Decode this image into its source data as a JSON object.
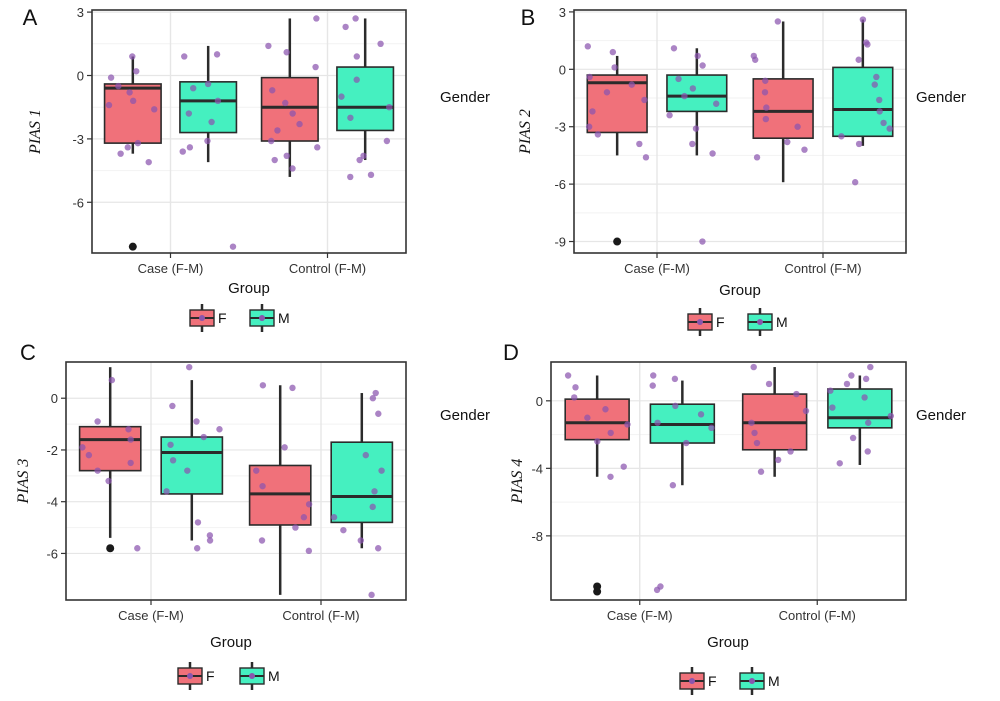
{
  "colors": {
    "F": "#f0717a",
    "M": "#45f0c0",
    "jitter": "#8a55ae",
    "outlier": "#1a1a1a",
    "panel_border": "#333333",
    "grid_major": "#e6e6e6",
    "grid_minor": "#f2f2f2"
  },
  "chart_data": [
    {
      "type": "box",
      "panel": "A",
      "ylabel": "PIAS 1",
      "xlabel": "Group",
      "categories": [
        "Case (F-M)",
        "Control (F-M)"
      ],
      "ylim": [
        -8.4,
        3.1
      ],
      "yticks": [
        -6,
        -3,
        0,
        3
      ],
      "legend": {
        "title": "Gender",
        "entries": [
          "F",
          "M"
        ]
      },
      "series": [
        {
          "name": "F",
          "boxes": [
            {
              "category": "Case (F-M)",
              "min": -3.7,
              "q1": -3.2,
              "median": -0.6,
              "q3": -0.4,
              "max": 0.9,
              "outliers": [
                -8.1
              ]
            },
            {
              "category": "Control (F-M)",
              "min": -4.8,
              "q1": -3.1,
              "median": -1.5,
              "q3": -0.1,
              "max": 2.7,
              "outliers": []
            }
          ]
        },
        {
          "name": "M",
          "boxes": [
            {
              "category": "Case (F-M)",
              "min": -4.1,
              "q1": -2.7,
              "median": -1.2,
              "q3": -0.3,
              "max": 1.4,
              "outliers": []
            },
            {
              "category": "Control (F-M)",
              "min": -4.0,
              "q1": -2.6,
              "median": -1.5,
              "q3": 0.4,
              "max": 2.7,
              "outliers": []
            }
          ]
        }
      ],
      "points": [
        {
          "category": "Case (F-M)",
          "group": "F",
          "values": [
            0.9,
            0.2,
            -0.1,
            -0.5,
            -0.8,
            -1.2,
            -1.4,
            -1.6,
            -3.2,
            -3.4,
            -3.7,
            -4.1
          ]
        },
        {
          "category": "Case (F-M)",
          "group": "M",
          "values": [
            1.0,
            0.9,
            -0.4,
            -0.6,
            -1.2,
            -1.8,
            -2.2,
            -3.1,
            -3.4,
            -3.6,
            -8.1
          ]
        },
        {
          "category": "Control (F-M)",
          "group": "F",
          "values": [
            2.7,
            1.4,
            1.1,
            0.4,
            -0.7,
            -1.3,
            -1.8,
            -2.3,
            -2.6,
            -3.1,
            -3.4,
            -3.8,
            -4.0,
            -4.4
          ]
        },
        {
          "category": "Control (F-M)",
          "group": "M",
          "values": [
            2.7,
            2.3,
            1.5,
            0.9,
            -0.2,
            -1.0,
            -1.5,
            -2.0,
            -3.1,
            -3.8,
            -4.8,
            -4.7,
            -4.0
          ]
        }
      ]
    },
    {
      "type": "box",
      "panel": "B",
      "ylabel": "PIAS 2",
      "xlabel": "Group",
      "categories": [
        "Case (F-M)",
        "Control (F-M)"
      ],
      "ylim": [
        -9.6,
        3.1
      ],
      "yticks": [
        -9,
        -6,
        -3,
        0,
        3
      ],
      "legend": {
        "title": "Gender",
        "entries": [
          "F",
          "M"
        ]
      },
      "series": [
        {
          "name": "F",
          "boxes": [
            {
              "category": "Case (F-M)",
              "min": -4.5,
              "q1": -3.3,
              "median": -0.7,
              "q3": -0.3,
              "max": 0.7,
              "outliers": [
                -9.0
              ]
            },
            {
              "category": "Control (F-M)",
              "min": -5.9,
              "q1": -3.6,
              "median": -2.2,
              "q3": -0.5,
              "max": 2.5,
              "outliers": []
            }
          ]
        },
        {
          "name": "M",
          "boxes": [
            {
              "category": "Case (F-M)",
              "min": -4.5,
              "q1": -2.2,
              "median": -1.4,
              "q3": -0.3,
              "max": 1.1,
              "outliers": []
            },
            {
              "category": "Control (F-M)",
              "min": -4.0,
              "q1": -3.5,
              "median": -2.1,
              "q3": 0.1,
              "max": 2.6,
              "outliers": []
            }
          ]
        }
      ],
      "points": [
        {
          "category": "Case (F-M)",
          "group": "F",
          "values": [
            1.2,
            0.9,
            0.1,
            -0.4,
            -0.8,
            -1.2,
            -1.6,
            -2.2,
            -3.0,
            -3.4,
            -3.9,
            -4.6
          ]
        },
        {
          "category": "Case (F-M)",
          "group": "M",
          "values": [
            1.1,
            0.7,
            0.2,
            -0.5,
            -1.0,
            -1.4,
            -1.8,
            -2.4,
            -3.1,
            -3.9,
            -4.4,
            -9.0
          ]
        },
        {
          "category": "Control (F-M)",
          "group": "F",
          "values": [
            2.5,
            0.7,
            0.5,
            -0.6,
            -1.2,
            -2.0,
            -2.6,
            -3.0,
            -3.8,
            -4.2,
            -4.6
          ]
        },
        {
          "category": "Control (F-M)",
          "group": "M",
          "values": [
            2.6,
            1.4,
            1.3,
            0.5,
            -0.4,
            -0.8,
            -1.6,
            -2.2,
            -2.8,
            -3.1,
            -3.5,
            -3.9,
            -5.9
          ]
        }
      ]
    },
    {
      "type": "box",
      "panel": "C",
      "ylabel": "PIAS 3",
      "xlabel": "Group",
      "categories": [
        "Case (F-M)",
        "Control (F-M)"
      ],
      "ylim": [
        -7.8,
        1.4
      ],
      "yticks": [
        -6,
        -4,
        -2,
        0
      ],
      "legend": {
        "title": "Gender",
        "entries": [
          "F",
          "M"
        ]
      },
      "series": [
        {
          "name": "F",
          "boxes": [
            {
              "category": "Case (F-M)",
              "min": -5.4,
              "q1": -2.8,
              "median": -1.6,
              "q3": -1.1,
              "max": 1.2,
              "outliers": [
                -5.8
              ]
            },
            {
              "category": "Control (F-M)",
              "min": -7.6,
              "q1": -4.9,
              "median": -3.7,
              "q3": -2.6,
              "max": 0.5,
              "outliers": []
            }
          ]
        },
        {
          "name": "M",
          "boxes": [
            {
              "category": "Case (F-M)",
              "min": -5.5,
              "q1": -3.7,
              "median": -2.1,
              "q3": -1.5,
              "max": 0.7,
              "outliers": []
            },
            {
              "category": "Control (F-M)",
              "min": -5.8,
              "q1": -4.8,
              "median": -3.8,
              "q3": -1.7,
              "max": 0.2,
              "outliers": []
            }
          ]
        }
      ],
      "points": [
        {
          "category": "Case (F-M)",
          "group": "F",
          "values": [
            0.7,
            -0.9,
            -1.2,
            -1.6,
            -1.9,
            -2.2,
            -2.5,
            -2.8,
            -3.2,
            -5.8
          ]
        },
        {
          "category": "Case (F-M)",
          "group": "M",
          "values": [
            1.2,
            -0.3,
            -0.9,
            -1.2,
            -1.5,
            -1.8,
            -2.4,
            -2.8,
            -3.6,
            -4.8,
            -5.3,
            -5.5,
            -5.8
          ]
        },
        {
          "category": "Control (F-M)",
          "group": "F",
          "values": [
            0.5,
            0.4,
            -1.9,
            -2.8,
            -3.4,
            -4.1,
            -4.6,
            -5.0,
            -5.5,
            -5.9
          ]
        },
        {
          "category": "Control (F-M)",
          "group": "M",
          "values": [
            0.2,
            0.0,
            -0.6,
            -2.2,
            -2.8,
            -3.6,
            -4.2,
            -4.6,
            -5.1,
            -5.5,
            -5.8,
            -7.6
          ]
        }
      ]
    },
    {
      "type": "box",
      "panel": "D",
      "ylabel": "PIAS 4",
      "xlabel": "Group",
      "categories": [
        "Case (F-M)",
        "Control (F-M)"
      ],
      "ylim": [
        -11.8,
        2.3
      ],
      "yticks": [
        -8,
        -4,
        0
      ],
      "legend": {
        "title": "Gender",
        "entries": [
          "F",
          "M"
        ]
      },
      "series": [
        {
          "name": "F",
          "boxes": [
            {
              "category": "Case (F-M)",
              "min": -4.5,
              "q1": -2.3,
              "median": -1.3,
              "q3": 0.1,
              "max": 1.5,
              "outliers": [
                -11.0,
                -11.3
              ]
            },
            {
              "category": "Control (F-M)",
              "min": -4.5,
              "q1": -2.9,
              "median": -1.3,
              "q3": 0.4,
              "max": 2.0,
              "outliers": []
            }
          ]
        },
        {
          "name": "M",
          "boxes": [
            {
              "category": "Case (F-M)",
              "min": -5.0,
              "q1": -2.5,
              "median": -1.4,
              "q3": -0.2,
              "max": 1.2,
              "outliers": []
            },
            {
              "category": "Control (F-M)",
              "min": -3.8,
              "q1": -1.6,
              "median": -1.0,
              "q3": 0.7,
              "max": 1.5,
              "outliers": []
            }
          ]
        }
      ],
      "points": [
        {
          "category": "Case (F-M)",
          "group": "F",
          "values": [
            1.5,
            0.8,
            0.2,
            -0.5,
            -1.0,
            -1.4,
            -1.9,
            -2.4,
            -3.9,
            -4.5
          ]
        },
        {
          "category": "Case (F-M)",
          "group": "M",
          "values": [
            1.5,
            1.3,
            0.9,
            -0.3,
            -0.8,
            -1.3,
            -1.6,
            -2.5,
            -5.0,
            -11.0,
            -11.2
          ]
        },
        {
          "category": "Control (F-M)",
          "group": "F",
          "values": [
            2.0,
            1.0,
            0.4,
            -0.6,
            -1.3,
            -1.9,
            -2.5,
            -3.0,
            -3.5,
            -4.2
          ]
        },
        {
          "category": "Control (F-M)",
          "group": "M",
          "values": [
            2.0,
            1.5,
            1.3,
            1.0,
            0.6,
            0.2,
            -0.4,
            -0.9,
            -1.3,
            -2.2,
            -3.0,
            -3.7
          ]
        }
      ]
    }
  ]
}
